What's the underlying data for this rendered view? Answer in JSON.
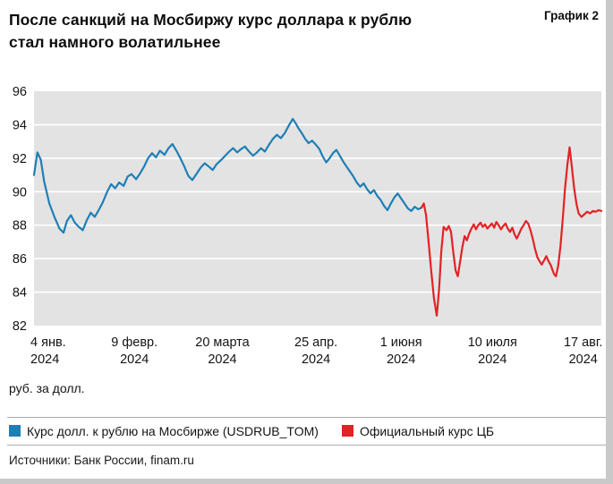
{
  "header": {
    "title_lines": [
      "После санкций на Мосбиржу курс доллара к рублю",
      "стал намного волатильнее"
    ],
    "chart_label": "График 2"
  },
  "axis_unit": "руб. за долл.",
  "legend": [
    {
      "label": "Курс долл. к рублю на Мосбирже (USDRUB_TOM)",
      "color": "#1e7fb5"
    },
    {
      "label": "Официальный курс ЦБ",
      "color": "#e32226"
    }
  ],
  "footer": "Источники: Банк России, finam.ru",
  "chart_data": {
    "type": "line",
    "title": "После санкций на Мосбиржу курс доллара к рублю стал намного волатильнее",
    "ylabel": "руб. за долл.",
    "ylim": [
      82,
      96
    ],
    "yticks": [
      82,
      84,
      86,
      88,
      90,
      92,
      94,
      96
    ],
    "grid": true,
    "plot_bg": "#e3e3e3",
    "grid_color": "#ffffff",
    "legend_position": "bottom",
    "xticks": [
      {
        "pos": 0.0,
        "label": "4 янв.",
        "year": "2024"
      },
      {
        "pos": 0.177,
        "label": "9 февр.",
        "year": "2024"
      },
      {
        "pos": 0.332,
        "label": "20 марта",
        "year": "2024"
      },
      {
        "pos": 0.497,
        "label": "25 апр.",
        "year": "2024"
      },
      {
        "pos": 0.647,
        "label": "1 июня",
        "year": "2024"
      },
      {
        "pos": 0.808,
        "label": "10 июля",
        "year": "2024"
      },
      {
        "pos": 0.968,
        "label": "17 авг.",
        "year": "2024"
      }
    ],
    "series": [
      {
        "name": "Курс долл. к рублю на Мосбирже (USDRUB_TOM)",
        "color": "#1e7fb5",
        "points": [
          [
            0.0,
            91.0
          ],
          [
            0.006,
            92.35
          ],
          [
            0.012,
            91.9
          ],
          [
            0.018,
            90.6
          ],
          [
            0.027,
            89.3
          ],
          [
            0.036,
            88.5
          ],
          [
            0.045,
            87.8
          ],
          [
            0.052,
            87.55
          ],
          [
            0.058,
            88.25
          ],
          [
            0.065,
            88.6
          ],
          [
            0.072,
            88.15
          ],
          [
            0.079,
            87.9
          ],
          [
            0.086,
            87.7
          ],
          [
            0.093,
            88.3
          ],
          [
            0.1,
            88.75
          ],
          [
            0.107,
            88.5
          ],
          [
            0.114,
            88.9
          ],
          [
            0.121,
            89.35
          ],
          [
            0.129,
            90.0
          ],
          [
            0.136,
            90.45
          ],
          [
            0.143,
            90.2
          ],
          [
            0.15,
            90.55
          ],
          [
            0.158,
            90.35
          ],
          [
            0.165,
            90.9
          ],
          [
            0.172,
            91.05
          ],
          [
            0.18,
            90.75
          ],
          [
            0.187,
            91.1
          ],
          [
            0.194,
            91.5
          ],
          [
            0.201,
            92.0
          ],
          [
            0.208,
            92.3
          ],
          [
            0.215,
            92.05
          ],
          [
            0.222,
            92.45
          ],
          [
            0.23,
            92.2
          ],
          [
            0.237,
            92.6
          ],
          [
            0.244,
            92.85
          ],
          [
            0.251,
            92.45
          ],
          [
            0.258,
            92.0
          ],
          [
            0.265,
            91.5
          ],
          [
            0.272,
            90.95
          ],
          [
            0.279,
            90.7
          ],
          [
            0.287,
            91.1
          ],
          [
            0.294,
            91.45
          ],
          [
            0.301,
            91.7
          ],
          [
            0.308,
            91.5
          ],
          [
            0.315,
            91.3
          ],
          [
            0.322,
            91.65
          ],
          [
            0.33,
            91.9
          ],
          [
            0.337,
            92.15
          ],
          [
            0.344,
            92.4
          ],
          [
            0.351,
            92.6
          ],
          [
            0.358,
            92.35
          ],
          [
            0.365,
            92.55
          ],
          [
            0.372,
            92.7
          ],
          [
            0.379,
            92.4
          ],
          [
            0.386,
            92.15
          ],
          [
            0.393,
            92.35
          ],
          [
            0.4,
            92.6
          ],
          [
            0.407,
            92.4
          ],
          [
            0.414,
            92.8
          ],
          [
            0.421,
            93.15
          ],
          [
            0.428,
            93.4
          ],
          [
            0.435,
            93.2
          ],
          [
            0.442,
            93.5
          ],
          [
            0.449,
            93.95
          ],
          [
            0.456,
            94.35
          ],
          [
            0.461,
            94.1
          ],
          [
            0.466,
            93.8
          ],
          [
            0.472,
            93.5
          ],
          [
            0.478,
            93.15
          ],
          [
            0.484,
            92.9
          ],
          [
            0.49,
            93.05
          ],
          [
            0.497,
            92.8
          ],
          [
            0.503,
            92.55
          ],
          [
            0.509,
            92.1
          ],
          [
            0.515,
            91.75
          ],
          [
            0.521,
            92.0
          ],
          [
            0.527,
            92.3
          ],
          [
            0.533,
            92.5
          ],
          [
            0.539,
            92.15
          ],
          [
            0.545,
            91.8
          ],
          [
            0.551,
            91.5
          ],
          [
            0.557,
            91.2
          ],
          [
            0.563,
            90.9
          ],
          [
            0.569,
            90.55
          ],
          [
            0.575,
            90.3
          ],
          [
            0.581,
            90.5
          ],
          [
            0.587,
            90.15
          ],
          [
            0.593,
            89.9
          ],
          [
            0.599,
            90.1
          ],
          [
            0.605,
            89.75
          ],
          [
            0.611,
            89.5
          ],
          [
            0.617,
            89.15
          ],
          [
            0.623,
            88.9
          ],
          [
            0.629,
            89.3
          ],
          [
            0.635,
            89.65
          ],
          [
            0.641,
            89.9
          ],
          [
            0.647,
            89.6
          ],
          [
            0.653,
            89.3
          ],
          [
            0.659,
            89.0
          ],
          [
            0.665,
            88.85
          ],
          [
            0.671,
            89.1
          ],
          [
            0.677,
            88.95
          ],
          [
            0.683,
            89.05
          ]
        ]
      },
      {
        "name": "Официальный курс ЦБ",
        "color": "#e32226",
        "points": [
          [
            0.683,
            89.05
          ],
          [
            0.687,
            89.3
          ],
          [
            0.691,
            88.6
          ],
          [
            0.695,
            87.2
          ],
          [
            0.7,
            85.3
          ],
          [
            0.705,
            83.6
          ],
          [
            0.71,
            82.6
          ],
          [
            0.714,
            84.2
          ],
          [
            0.718,
            86.5
          ],
          [
            0.722,
            87.9
          ],
          [
            0.727,
            87.7
          ],
          [
            0.731,
            87.95
          ],
          [
            0.735,
            87.6
          ],
          [
            0.739,
            86.4
          ],
          [
            0.743,
            85.3
          ],
          [
            0.747,
            84.95
          ],
          [
            0.751,
            85.8
          ],
          [
            0.755,
            86.7
          ],
          [
            0.759,
            87.35
          ],
          [
            0.763,
            87.1
          ],
          [
            0.767,
            87.5
          ],
          [
            0.771,
            87.8
          ],
          [
            0.775,
            88.05
          ],
          [
            0.779,
            87.75
          ],
          [
            0.783,
            88.0
          ],
          [
            0.787,
            88.15
          ],
          [
            0.791,
            87.9
          ],
          [
            0.795,
            88.05
          ],
          [
            0.799,
            87.8
          ],
          [
            0.803,
            87.95
          ],
          [
            0.807,
            88.1
          ],
          [
            0.811,
            87.85
          ],
          [
            0.815,
            88.2
          ],
          [
            0.819,
            88.0
          ],
          [
            0.823,
            87.75
          ],
          [
            0.827,
            87.95
          ],
          [
            0.831,
            88.1
          ],
          [
            0.835,
            87.8
          ],
          [
            0.839,
            87.6
          ],
          [
            0.843,
            87.85
          ],
          [
            0.847,
            87.45
          ],
          [
            0.851,
            87.2
          ],
          [
            0.855,
            87.5
          ],
          [
            0.859,
            87.8
          ],
          [
            0.863,
            88.0
          ],
          [
            0.867,
            88.25
          ],
          [
            0.871,
            88.1
          ],
          [
            0.875,
            87.7
          ],
          [
            0.879,
            87.2
          ],
          [
            0.883,
            86.6
          ],
          [
            0.887,
            86.1
          ],
          [
            0.891,
            85.85
          ],
          [
            0.895,
            85.65
          ],
          [
            0.899,
            85.9
          ],
          [
            0.903,
            86.15
          ],
          [
            0.907,
            85.85
          ],
          [
            0.911,
            85.6
          ],
          [
            0.914,
            85.3
          ],
          [
            0.917,
            85.05
          ],
          [
            0.92,
            84.95
          ],
          [
            0.924,
            85.6
          ],
          [
            0.928,
            86.8
          ],
          [
            0.932,
            88.4
          ],
          [
            0.936,
            90.2
          ],
          [
            0.94,
            91.6
          ],
          [
            0.944,
            92.65
          ],
          [
            0.948,
            91.5
          ],
          [
            0.952,
            90.2
          ],
          [
            0.956,
            89.3
          ],
          [
            0.96,
            88.7
          ],
          [
            0.965,
            88.5
          ],
          [
            0.97,
            88.65
          ],
          [
            0.975,
            88.8
          ],
          [
            0.98,
            88.7
          ],
          [
            0.985,
            88.85
          ],
          [
            0.99,
            88.8
          ],
          [
            0.995,
            88.9
          ],
          [
            1.0,
            88.85
          ]
        ]
      }
    ]
  }
}
